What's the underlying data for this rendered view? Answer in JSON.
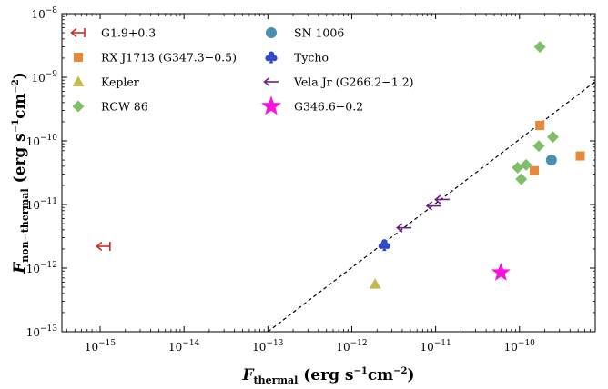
{
  "chart_data": {
    "type": "scatter",
    "title": "",
    "xlabel": {
      "main": "F",
      "sub": "thermal",
      "units": " (erg s",
      "sup1": "−1",
      "cm": "cm",
      "sup2": "−2",
      "close": ")"
    },
    "ylabel": {
      "main": "F",
      "sub": "non−thermal",
      "units": " (erg s",
      "sup1": "−1",
      "cm": "cm",
      "sup2": "−2",
      "close": ")"
    },
    "xscale": "log",
    "yscale": "log",
    "xlim": [
      3.5e-16,
      8e-10
    ],
    "ylim": [
      1e-13,
      1e-08
    ],
    "grid": false,
    "legend_position": "top-left",
    "x_ticks": [
      {
        "value": 1e-15,
        "base": "10",
        "exp": "−15"
      },
      {
        "value": 1e-14,
        "base": "10",
        "exp": "−14"
      },
      {
        "value": 1e-13,
        "base": "10",
        "exp": "−13"
      },
      {
        "value": 1e-12,
        "base": "10",
        "exp": "−12"
      },
      {
        "value": 1e-11,
        "base": "10",
        "exp": "−11"
      },
      {
        "value": 1e-10,
        "base": "10",
        "exp": "−10"
      }
    ],
    "y_ticks": [
      {
        "value": 1e-13,
        "base": "10",
        "exp": "−13"
      },
      {
        "value": 1e-12,
        "base": "10",
        "exp": "−12"
      },
      {
        "value": 1e-11,
        "base": "10",
        "exp": "−11"
      },
      {
        "value": 1e-10,
        "base": "10",
        "exp": "−10"
      },
      {
        "value": 1e-09,
        "base": "10",
        "exp": "−9"
      },
      {
        "value": 1e-08,
        "base": "10",
        "exp": "−8"
      }
    ],
    "reference_line": {
      "style": "dashed",
      "color": "#000000",
      "points": [
        [
          1e-13,
          1e-13
        ],
        [
          8e-10,
          8.6e-10
        ]
      ]
    },
    "series": [
      {
        "name": "G1.9+0.3",
        "marker": "left-arrow-bar",
        "color": "#d62728",
        "points": [
          [
            1.1e-15,
            2.2e-12
          ]
        ]
      },
      {
        "name": "RX J1713 (G347.3−0.5)",
        "marker": "square",
        "color": "#e8883a",
        "points": [
          [
            1.75e-10,
            1.75e-10
          ],
          [
            5.3e-10,
            5.8e-11
          ],
          [
            1.5e-10,
            3.4e-11
          ]
        ]
      },
      {
        "name": "Kepler",
        "marker": "triangle",
        "color": "#c7b94a",
        "points": [
          [
            1.9e-12,
            5.6e-13
          ]
        ]
      },
      {
        "name": "RCW 86",
        "marker": "diamond",
        "color": "#7fbf6a",
        "points": [
          [
            1.75e-10,
            3e-09
          ],
          [
            1.7e-10,
            8.3e-11
          ],
          [
            2.5e-10,
            1.15e-10
          ],
          [
            9.5e-11,
            3.8e-11
          ],
          [
            1.2e-10,
            4.2e-11
          ],
          [
            1.05e-10,
            2.5e-11
          ]
        ]
      },
      {
        "name": "SN 1006",
        "marker": "circle",
        "color": "#4a8fb0",
        "points": [
          [
            2.4e-10,
            5e-11
          ]
        ]
      },
      {
        "name": "Tycho",
        "marker": "club",
        "color": "#2f49c8",
        "points": [
          [
            2.45e-12,
            2.3e-12
          ]
        ]
      },
      {
        "name": "Vela Jr (G266.2−1.2)",
        "marker": "left-arrow",
        "color": "#6a1f8a",
        "points": [
          [
            4.2e-12,
            4.3e-12
          ],
          [
            9.5e-12,
            9.5e-12
          ],
          [
            1.2e-11,
            1.2e-11
          ]
        ]
      },
      {
        "name": "G346.6−0.2",
        "marker": "star",
        "color": "#ff11dd",
        "points": [
          [
            6e-11,
            8.5e-13
          ]
        ]
      }
    ]
  }
}
